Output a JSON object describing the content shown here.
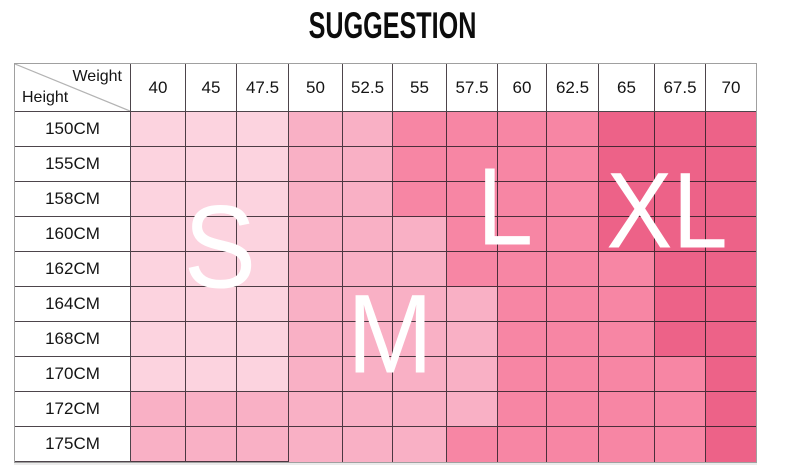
{
  "title": "SUGGESTION",
  "corner": {
    "weight_label": "Weight",
    "height_label": "Height"
  },
  "sizes": {
    "s": "S",
    "m": "M",
    "l": "L",
    "xl": "XL"
  },
  "colors": {
    "S": "#fcd3df",
    "M": "#f9b0c5",
    "L": "#f786a4",
    "XL": "#ed6288"
  },
  "chart_data": {
    "type": "heatmap",
    "title": "SUGGESTION",
    "x_label": "Weight",
    "y_label": "Height",
    "x_ticks": [
      "40",
      "45",
      "47.5",
      "50",
      "52.5",
      "55",
      "57.5",
      "60",
      "62.5",
      "65",
      "67.5",
      "70"
    ],
    "y_ticks": [
      "150CM",
      "155CM",
      "158CM",
      "160CM",
      "162CM",
      "164CM",
      "168CM",
      "170CM",
      "172CM",
      "175CM"
    ],
    "values": [
      [
        "S",
        "S",
        "S",
        "M",
        "M",
        "L",
        "L",
        "L",
        "L",
        "XL",
        "XL",
        "XL"
      ],
      [
        "S",
        "S",
        "S",
        "M",
        "M",
        "L",
        "L",
        "L",
        "L",
        "XL",
        "XL",
        "XL"
      ],
      [
        "S",
        "S",
        "S",
        "M",
        "M",
        "L",
        "L",
        "L",
        "L",
        "XL",
        "XL",
        "XL"
      ],
      [
        "S",
        "S",
        "S",
        "M",
        "M",
        "M",
        "L",
        "L",
        "L",
        "XL",
        "XL",
        "XL"
      ],
      [
        "S",
        "S",
        "S",
        "M",
        "M",
        "M",
        "L",
        "L",
        "L",
        "L",
        "XL",
        "XL"
      ],
      [
        "S",
        "S",
        "S",
        "M",
        "M",
        "M",
        "M",
        "L",
        "L",
        "L",
        "XL",
        "XL"
      ],
      [
        "S",
        "S",
        "S",
        "M",
        "M",
        "M",
        "M",
        "L",
        "L",
        "L",
        "XL",
        "XL"
      ],
      [
        "S",
        "S",
        "S",
        "M",
        "M",
        "M",
        "M",
        "L",
        "L",
        "L",
        "L",
        "XL"
      ],
      [
        "M",
        "M",
        "M",
        "M",
        "M",
        "M",
        "M",
        "L",
        "L",
        "L",
        "L",
        "XL"
      ],
      [
        "M",
        "M",
        "M",
        "M",
        "M",
        "M",
        "L",
        "L",
        "L",
        "L",
        "L",
        "XL"
      ]
    ],
    "legend": [
      {
        "label": "S",
        "color": "#fcd3df"
      },
      {
        "label": "M",
        "color": "#f9b0c5"
      },
      {
        "label": "L",
        "color": "#f786a4"
      },
      {
        "label": "XL",
        "color": "#ed6288"
      }
    ],
    "grid": true,
    "legend_position": "overlay-letters"
  }
}
